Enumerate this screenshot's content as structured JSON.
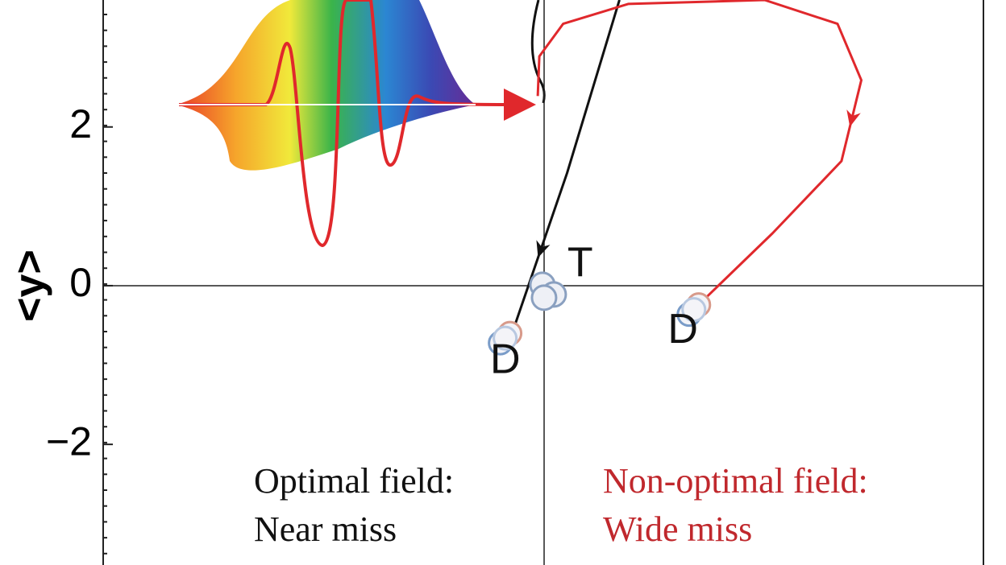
{
  "chart_data": {
    "type": "trajectory",
    "ylabel": "<y>",
    "xlim": [
      -5.55,
      5.55
    ],
    "ylim": [
      -3.52,
      3.6
    ],
    "yticks": [
      2,
      0,
      {
        "value": -2,
        "label": "−2"
      }
    ],
    "series": [
      {
        "color": "#111111",
        "x": [
          0.96,
          0.3,
          -0.38
        ],
        "y": [
          3.6,
          1.42,
          -0.56
        ]
      },
      {
        "color": "#e0282c",
        "x": [
          -0.07,
          -0.05,
          0.25,
          1.07,
          2.79,
          3.71,
          4.01,
          3.76,
          2.89,
          2.0
        ],
        "y": [
          2.39,
          2.89,
          3.3,
          3.55,
          3.6,
          3.3,
          2.59,
          1.57,
          0.66,
          -0.2
        ]
      }
    ],
    "annotations": [
      {
        "text": "T",
        "x": 0.05,
        "y": -0.05
      },
      {
        "text": "D",
        "x": -0.48,
        "y": -0.76
      },
      {
        "text": "D",
        "x": 1.76,
        "y": -0.38
      }
    ],
    "notes": [
      {
        "color": "#111111",
        "lines": [
          "Optimal field:",
          "Near miss"
        ]
      },
      {
        "color": "#c0282d",
        "lines": [
          "Non-optimal field:",
          "Wide miss"
        ]
      }
    ]
  }
}
